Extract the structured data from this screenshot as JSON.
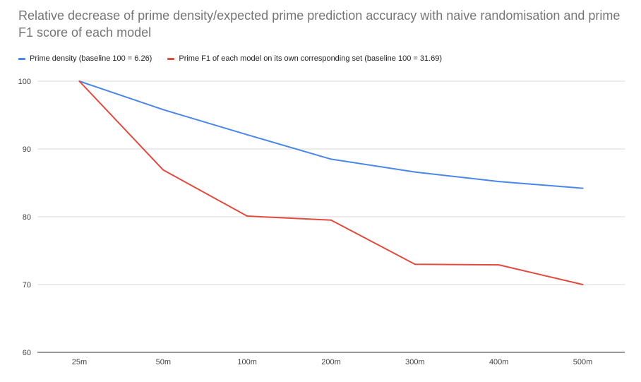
{
  "chart_data": {
    "type": "line",
    "title": "Relative decrease of prime density/expected prime prediction accuracy with naive randomisation and prime F1 score of each model",
    "xlabel": "",
    "ylabel": "",
    "categories": [
      "25m",
      "50m",
      "100m",
      "200m",
      "300m",
      "400m",
      "500m"
    ],
    "ylim": [
      60,
      100
    ],
    "yticks": [
      60,
      70,
      80,
      90,
      100
    ],
    "grid": true,
    "legend_position": "top-left",
    "series": [
      {
        "name": "Prime density (baseline 100 = 6.26)",
        "color": "#4a86e8",
        "values": [
          100,
          95.8,
          92.1,
          88.5,
          86.6,
          85.2,
          84.2
        ]
      },
      {
        "name": "Prime F1 of each model on its own corresponding set (baseline 100 =  31.69)",
        "color": "#e04a3f",
        "values": [
          100,
          86.9,
          80.1,
          79.5,
          73.0,
          72.9,
          70.0
        ]
      }
    ]
  }
}
